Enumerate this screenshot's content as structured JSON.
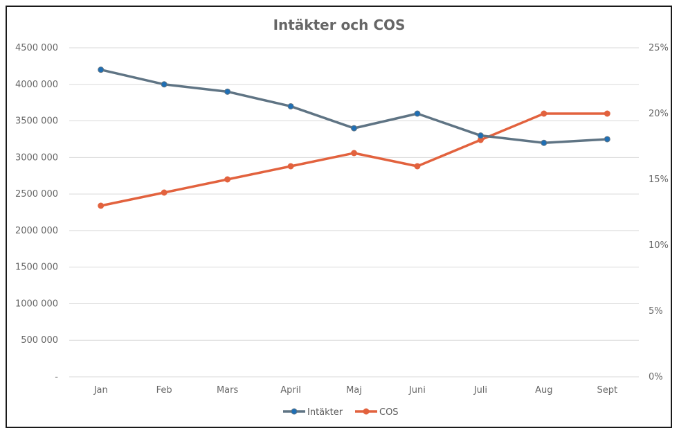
{
  "chart_data": {
    "type": "line",
    "title": "Intäkter och COS",
    "xlabel": "",
    "ylabel": "",
    "categories": [
      "Jan",
      "Feb",
      "Mars",
      "April",
      "Maj",
      "Juni",
      "Juli",
      "Aug",
      "Sept"
    ],
    "y_ticks": [
      "-",
      "500 000",
      "1000 000",
      "1500 000",
      "2000 000",
      "2500 000",
      "3000 000",
      "3500 000",
      "4000 000",
      "4500 000"
    ],
    "y2_ticks": [
      "0%",
      "5%",
      "10%",
      "15%",
      "20%",
      "25%"
    ],
    "ylim": [
      0,
      4500000
    ],
    "y2lim": [
      0,
      0.25
    ],
    "grid": true,
    "legend_position": "bottom",
    "series": [
      {
        "name": "Intäkter",
        "axis": "left",
        "color": "#5f7484",
        "marker_color": "#1f6fb5",
        "values": [
          4200000,
          4000000,
          3900000,
          3700000,
          3400000,
          3600000,
          3300000,
          3200000,
          3250000
        ]
      },
      {
        "name": "COS",
        "axis": "right",
        "color": "#e2623e",
        "marker_color": "#e2623e",
        "values": [
          0.13,
          0.14,
          0.15,
          0.16,
          0.17,
          0.16,
          0.18,
          0.2,
          0.2
        ]
      }
    ]
  }
}
